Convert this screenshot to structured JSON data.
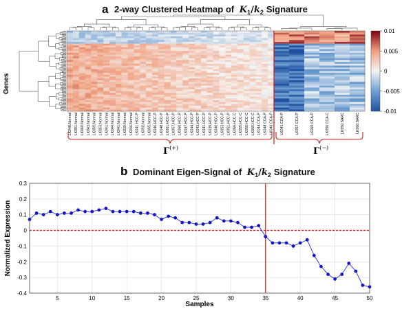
{
  "panel_a": {
    "letter": "a",
    "title_pre": "2-way Clustered Heatmap of",
    "title_k1": "K",
    "title_k1_sub": "1",
    "title_slash": "/",
    "title_k2": "k",
    "title_k2_sub": "2",
    "title_post": "Signature",
    "row_label": "Genes",
    "group_pos_symbol": "Γ",
    "group_pos_sup": "(+)",
    "group_neg_symbol": "Γ",
    "group_neg_sup": "(−)",
    "colorbar_ticks": [
      "0.01",
      "0.005",
      "0",
      "-0.005",
      "-0.01"
    ],
    "colors": {
      "low": "#1f4fa0",
      "mid": "#f5f5f5",
      "high": "#7a0010",
      "separator": "#cc2222",
      "brace": "#cc2222"
    }
  },
  "panel_b": {
    "letter": "b",
    "title_pre": "Dominant Eigen-Signal of",
    "title_k1": "K",
    "title_k1_sub": "1",
    "title_slash": "/",
    "title_k2": "k",
    "title_k2_sub": "2",
    "title_post": "Signature"
  },
  "chart_data": [
    {
      "type": "heatmap",
      "title": "2-way Clustered Heatmap of K1/k2 Signature",
      "ylabel": "Genes",
      "colorbar_range": [
        -0.01,
        0.01
      ],
      "colorbar_ticks": [
        0.01,
        0.005,
        0,
        -0.005,
        -0.01
      ],
      "columns": [
        "LK048.Normal",
        "LK051.Normal",
        "LK060.Normal",
        "LK043.Normal",
        "LK059.Normal",
        "LK053.Normal",
        "LK061.Normal",
        "LK044.Normal",
        "LK041.Normal",
        "LK039.Normal",
        "LK046.Normal",
        "LK041.HCC-P",
        "LK050.Normal",
        "LK055.Normal",
        "LK046.HCC-P",
        "LK048.HCC-P",
        "LK061.HCC-P",
        "LK057.HCC-P",
        "LK060.HCC-P",
        "LK047.HCC-P",
        "LK044.HCC-P",
        "LK043.HCC-P",
        "LK041.HCC-P",
        "LK039.HCC-P",
        "LK046.HCC-P",
        "LK053.HCC-P",
        "LK051.HCC-P",
        "LK059.HCC-C",
        "LK055.HCC-C",
        "LK050.HCC-C",
        "LK060.HCC-C",
        "LK044.CCA-P",
        "LK048.CCA-P",
        "LK046.CCA-P",
        "LK041.CCA-P",
        "LK057.CCA-P",
        "LK060.CCA-P",
        "LK050.CCA-C",
        "LK050.SARC",
        "LK060.SARC"
      ],
      "group_split_after_column": 34,
      "groups": [
        "Γ(+)",
        "Γ(−)"
      ]
    },
    {
      "type": "line",
      "title": "Dominant Eigen-Signal of K1/k2 Signature",
      "xlabel": "Samples",
      "ylabel": "Normalized Expression",
      "xlim": [
        1,
        50
      ],
      "ylim": [
        -0.4,
        0.3
      ],
      "xticks": [
        5,
        10,
        15,
        20,
        25,
        30,
        35,
        40,
        45,
        50
      ],
      "yticks": [
        0.3,
        0.2,
        0.1,
        0,
        -0.1,
        -0.2,
        -0.3,
        -0.4
      ],
      "grid": true,
      "vertical_line_x": 35,
      "horizontal_line_y": 0,
      "colors": {
        "series": "#1f2fd0",
        "marker": "#1414c8",
        "vline": "#e01010",
        "hline": "#e01010"
      },
      "series": [
        {
          "x": [
            1,
            2,
            3,
            4,
            5,
            6,
            7,
            8,
            9,
            10,
            11,
            12,
            13,
            14,
            15,
            16,
            17,
            18,
            19,
            20,
            21,
            22,
            23,
            24,
            25,
            26,
            27,
            28,
            29,
            30,
            31,
            32,
            33,
            34,
            35,
            36,
            37,
            38,
            39,
            40,
            41,
            42,
            43,
            44,
            45,
            46,
            47,
            48,
            49,
            50
          ],
          "y": [
            0.07,
            0.11,
            0.1,
            0.12,
            0.1,
            0.11,
            0.11,
            0.13,
            0.12,
            0.12,
            0.13,
            0.14,
            0.12,
            0.12,
            0.12,
            0.12,
            0.11,
            0.11,
            0.1,
            0.07,
            0.09,
            0.08,
            0.05,
            0.05,
            0.04,
            0.04,
            0.05,
            0.08,
            0.06,
            0.06,
            0.05,
            0.02,
            0.02,
            0.03,
            -0.04,
            -0.08,
            -0.08,
            -0.08,
            -0.1,
            -0.08,
            -0.06,
            -0.16,
            -0.23,
            -0.28,
            -0.31,
            -0.28,
            -0.21,
            -0.26,
            -0.35,
            -0.36
          ]
        }
      ]
    }
  ]
}
